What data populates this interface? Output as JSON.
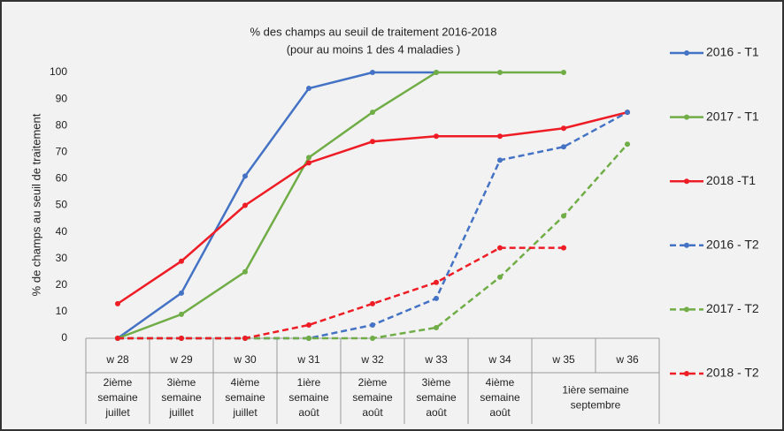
{
  "chart_data": {
    "type": "line",
    "title": [
      "% des champs au seuil de traitement 2016-2018",
      "(pour au moins 1 des 4 maladies )"
    ],
    "y_label": "% de champs au seuil de traitement",
    "categories": [
      "w 28",
      "w 29",
      "w 30",
      "w 31",
      "w 32",
      "w 33",
      "w 34",
      "w 35",
      "w 36"
    ],
    "category_groups": [
      {
        "label": [
          "2ième",
          "semaine",
          "juillet"
        ],
        "span": 1
      },
      {
        "label": [
          "3ième",
          "semaine",
          "juillet"
        ],
        "span": 1
      },
      {
        "label": [
          "4ième",
          "semaine",
          "juillet"
        ],
        "span": 1
      },
      {
        "label": [
          "1ière",
          "semaine",
          "août"
        ],
        "span": 1
      },
      {
        "label": [
          "2ième",
          "semaine",
          "août"
        ],
        "span": 1
      },
      {
        "label": [
          "3ième",
          "semaine",
          "août"
        ],
        "span": 1
      },
      {
        "label": [
          "4ième",
          "semaine",
          "août"
        ],
        "span": 1
      },
      {
        "label": [
          "1ière semaine",
          "septembre"
        ],
        "span": 2
      }
    ],
    "series": [
      {
        "name": "2016 - T1",
        "color": "#4472c4",
        "dashed": false,
        "values": [
          0,
          17,
          61,
          94,
          100,
          100,
          null,
          null,
          null
        ]
      },
      {
        "name": "2017 - T1",
        "color": "#70ad47",
        "dashed": false,
        "values": [
          0,
          9,
          25,
          68,
          85,
          100,
          100,
          100,
          null
        ]
      },
      {
        "name": "2018 -T1",
        "color": "#ee1c25",
        "dashed": false,
        "values": [
          13,
          29,
          50,
          66,
          74,
          76,
          76,
          79,
          85
        ]
      },
      {
        "name": "2016 - T2",
        "color": "#4472c4",
        "dashed": true,
        "values": [
          0,
          0,
          0,
          0,
          5,
          15,
          67,
          72,
          85
        ]
      },
      {
        "name": "2017 - T2",
        "color": "#70ad47",
        "dashed": true,
        "values": [
          0,
          0,
          0,
          0,
          0,
          4,
          23,
          46,
          73
        ]
      },
      {
        "name": "2018 - T2",
        "color": "#ee1c25",
        "dashed": true,
        "values": [
          0,
          0,
          0,
          5,
          13,
          21,
          34,
          34,
          null
        ]
      }
    ],
    "ylim": [
      0,
      100
    ],
    "yticks": [
      0,
      10,
      20,
      30,
      40,
      50,
      60,
      70,
      80,
      90,
      100
    ],
    "grid": false,
    "legend": "right"
  }
}
